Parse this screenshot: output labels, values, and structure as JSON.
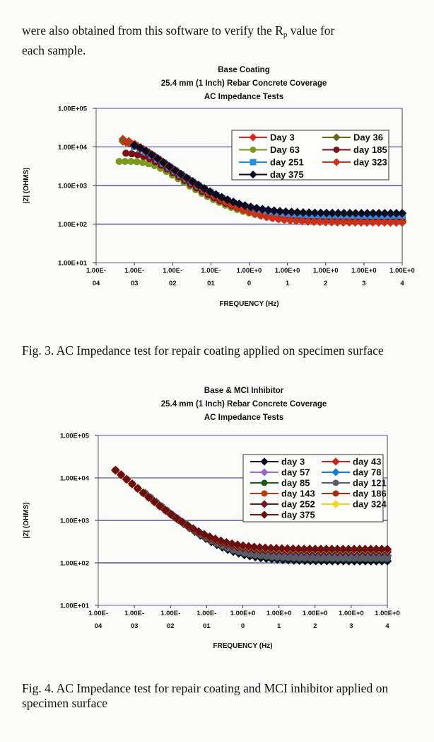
{
  "intro_text": {
    "line1_pre": "were also obtained from this software to verify the R",
    "line1_sub": "p",
    "line1_post": " value for",
    "line2": "each sample."
  },
  "captions": {
    "fig3": "Fig. 3. AC Impedance test for repair coating applied on specimen surface",
    "fig4": "Fig. 4. AC Impedance test for repair coating and MCI inhibitor applied on specimen surface"
  },
  "chart_data": [
    {
      "type": "scatter",
      "title_lines": [
        "Base Coating",
        "25.4 mm (1 Inch) Rebar Concrete Coverage",
        "AC Impedance Tests"
      ],
      "xlabel": "FREQUENCY (Hz)",
      "ylabel": "|Z| (OHMS)",
      "xscale": "log",
      "yscale": "log",
      "xlim": [
        0.0001,
        10000
      ],
      "ylim": [
        10,
        100000
      ],
      "x_ticks": [
        [
          "1.00E-",
          "04"
        ],
        [
          "1.00E-",
          "03"
        ],
        [
          "1.00E-",
          "02"
        ],
        [
          "1.00E-",
          "01"
        ],
        [
          "1.00E+0",
          "0"
        ],
        [
          "1.00E+0",
          "1"
        ],
        [
          "1.00E+0",
          "2"
        ],
        [
          "1.00E+0",
          "3"
        ],
        [
          "1.00E+0",
          "4"
        ]
      ],
      "y_ticks": [
        "1.00E+05",
        "1.00E+04",
        "1.00E+03",
        "1.00E+02",
        "1.00E+01"
      ],
      "grid": true,
      "legend_position": "top-right",
      "legend_columns": 2,
      "series": [
        {
          "name": "Day 3",
          "color": "#d42a1c",
          "marker": "diamond",
          "f_start": 0.0005,
          "z_low_freq": 19000,
          "z_high_freq": 115,
          "corner_hz": 0.0006
        },
        {
          "name": "Day 36",
          "color": "#6b6a14",
          "marker": "diamond",
          "f_start": 0.0005,
          "z_low_freq": 16000,
          "z_high_freq": 125,
          "corner_hz": 0.0007
        },
        {
          "name": "Day 63",
          "color": "#7a9a1e",
          "marker": "circle",
          "f_start": 0.0004,
          "z_low_freq": 4200,
          "z_high_freq": 130,
          "corner_hz": 0.003
        },
        {
          "name": "day 185",
          "color": "#7a1218",
          "marker": "circle",
          "f_start": 0.0006,
          "z_low_freq": 7000,
          "z_high_freq": 140,
          "corner_hz": 0.0018
        },
        {
          "name": "day 251",
          "color": "#2a8de0",
          "marker": "square",
          "f_start": 0.001,
          "z_low_freq": 13000,
          "z_high_freq": 170,
          "corner_hz": 0.001
        },
        {
          "name": "day 323",
          "color": "#c8321a",
          "marker": "diamond",
          "f_start": 0.0006,
          "z_low_freq": 15000,
          "z_high_freq": 110,
          "corner_hz": 0.0009
        },
        {
          "name": "day 375",
          "color": "#0b0c22",
          "marker": "diamond",
          "f_start": 0.001,
          "z_low_freq": 14500,
          "z_high_freq": 190,
          "corner_hz": 0.0009
        }
      ]
    },
    {
      "type": "scatter",
      "title_lines": [
        "Base & MCI Inhibitor",
        "25.4 mm (1 Inch) Rebar Concrete Coverage",
        "AC Impedance Tests"
      ],
      "xlabel": "FREQUENCY (Hz)",
      "ylabel": "|Z| (OHMS)",
      "xscale": "log",
      "yscale": "log",
      "xlim": [
        0.0001,
        10000
      ],
      "ylim": [
        10,
        100000
      ],
      "x_ticks": [
        [
          "1.00E-",
          "04"
        ],
        [
          "1.00E-",
          "03"
        ],
        [
          "1.00E-",
          "02"
        ],
        [
          "1.00E-",
          "01"
        ],
        [
          "1.00E+0",
          "0"
        ],
        [
          "1.00E+0",
          "1"
        ],
        [
          "1.00E+0",
          "2"
        ],
        [
          "1.00E+0",
          "3"
        ],
        [
          "1.00E+0",
          "4"
        ]
      ],
      "y_ticks": [
        "1.00E+05",
        "1.00E+04",
        "1.00E+03",
        "1.00E+02",
        "1.00E+01"
      ],
      "grid": true,
      "legend_position": "top-right",
      "legend_columns": 2,
      "series": [
        {
          "name": "day 3",
          "color": "#0b0c22",
          "marker": "diamond",
          "f_start": 0.002,
          "z_low_freq": 60000,
          "z_high_freq": 110,
          "corner_hz": 5e-05
        },
        {
          "name": "day 43",
          "color": "#c8201a",
          "marker": "diamond",
          "f_start": 0.0003,
          "z_low_freq": 55000,
          "z_high_freq": 200,
          "corner_hz": 5e-05
        },
        {
          "name": "day 57",
          "color": "#9a6ac8",
          "marker": "diamond",
          "f_start": 0.002,
          "z_low_freq": 60000,
          "z_high_freq": 140,
          "corner_hz": 5e-05
        },
        {
          "name": "day 78",
          "color": "#1a7ad8",
          "marker": "diamond",
          "f_start": 0.002,
          "z_low_freq": 60000,
          "z_high_freq": 150,
          "corner_hz": 5e-05
        },
        {
          "name": "day 85",
          "color": "#1a5a1a",
          "marker": "circle",
          "f_start": 0.002,
          "z_low_freq": 60000,
          "z_high_freq": 125,
          "corner_hz": 5e-05
        },
        {
          "name": "day 121",
          "color": "#5a5a68",
          "marker": "circle",
          "f_start": 0.002,
          "z_low_freq": 60000,
          "z_high_freq": 130,
          "corner_hz": 5e-05
        },
        {
          "name": "day 143",
          "color": "#c83214",
          "marker": "circle",
          "f_start": 0.0003,
          "z_low_freq": 55000,
          "z_high_freq": 190,
          "corner_hz": 5e-05
        },
        {
          "name": "day 186",
          "color": "#b42814",
          "marker": "circle",
          "f_start": 0.0003,
          "z_low_freq": 55000,
          "z_high_freq": 195,
          "corner_hz": 5e-05
        },
        {
          "name": "day 252",
          "color": "#6a1a24",
          "marker": "diamond",
          "f_start": 0.0003,
          "z_low_freq": 55000,
          "z_high_freq": 180,
          "corner_hz": 5e-05
        },
        {
          "name": "day 324",
          "color": "#f0d81a",
          "marker": "diamond",
          "f_start": 0.0003,
          "z_low_freq": 55000,
          "z_high_freq": 205,
          "corner_hz": 5e-05
        },
        {
          "name": "day 375",
          "color": "#6a0e10",
          "marker": "diamond",
          "f_start": 0.0003,
          "z_low_freq": 55000,
          "z_high_freq": 210,
          "corner_hz": 5e-05
        }
      ]
    }
  ]
}
